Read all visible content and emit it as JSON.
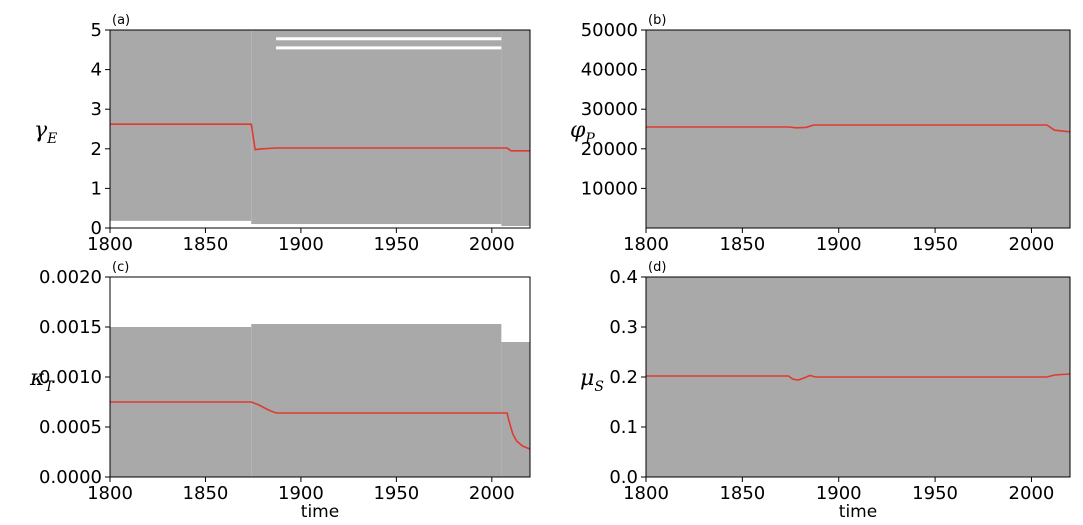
{
  "chart_data": [
    {
      "type": "line",
      "panel_label": "(a)",
      "ylabel_main": "γ",
      "ylabel_sub": "E",
      "xlabel": "",
      "xlim": [
        1800,
        2020
      ],
      "ylim": [
        0,
        5
      ],
      "xticks": [
        "1800",
        "1850",
        "1900",
        "1950",
        "2000"
      ],
      "yticks": [
        "0",
        "1",
        "2",
        "3",
        "4",
        "5"
      ],
      "band": {
        "color": "#a9a9a9",
        "segments": [
          {
            "x0": 1800,
            "x1": 1874,
            "lower": 0.18,
            "upper": 5.0
          },
          {
            "x0": 1874,
            "x1": 2005,
            "lower": 0.1,
            "upper": 5.0
          },
          {
            "x0": 2005,
            "x1": 2020,
            "lower": 0.05,
            "upper": 5.0
          }
        ],
        "gaps": [
          {
            "x0": 1887,
            "x1": 2005,
            "y": 4.78
          },
          {
            "x0": 1887,
            "x1": 2005,
            "y": 4.55
          }
        ]
      },
      "series": [
        {
          "color": "#e03a2f",
          "x": [
            1800,
            1874,
            1875,
            1876,
            1880,
            1887,
            2008,
            2010,
            2020
          ],
          "y": [
            2.62,
            2.62,
            2.3,
            1.98,
            2.0,
            2.02,
            2.02,
            1.95,
            1.95
          ]
        }
      ]
    },
    {
      "type": "line",
      "panel_label": "(b)",
      "ylabel_main": "φ",
      "ylabel_sub": "P",
      "xlabel": "",
      "xlim": [
        1800,
        2020
      ],
      "ylim": [
        0,
        50000
      ],
      "xticks": [
        "1800",
        "1850",
        "1900",
        "1950",
        "2000"
      ],
      "yticks": [
        "10000",
        "20000",
        "30000",
        "40000",
        "50000"
      ],
      "ytick_values": [
        10000,
        20000,
        30000,
        40000,
        50000
      ],
      "band": {
        "color": "#a9a9a9",
        "segments": [
          {
            "x0": 1800,
            "x1": 2020,
            "lower": 0,
            "upper": 50000
          }
        ],
        "gaps": []
      },
      "series": [
        {
          "color": "#e03a2f",
          "x": [
            1800,
            1874,
            1878,
            1883,
            1887,
            2008,
            2012,
            2020
          ],
          "y": [
            25500,
            25500,
            25300,
            25400,
            26000,
            26000,
            24700,
            24300
          ]
        }
      ]
    },
    {
      "type": "line",
      "panel_label": "(c)",
      "ylabel_main": "κ",
      "ylabel_sub": "T",
      "xlabel": "time",
      "xlim": [
        1800,
        2020
      ],
      "ylim": [
        0,
        0.002
      ],
      "xticks": [
        "1800",
        "1850",
        "1900",
        "1950",
        "2000"
      ],
      "yticks": [
        "0.0000",
        "0.0005",
        "0.0010",
        "0.0015",
        "0.0020"
      ],
      "ytick_values": [
        0,
        0.0005,
        0.001,
        0.0015,
        0.002
      ],
      "band": {
        "color": "#a9a9a9",
        "segments": [
          {
            "x0": 1800,
            "x1": 1874,
            "lower": 0,
            "upper": 0.0015
          },
          {
            "x0": 1874,
            "x1": 2005,
            "lower": 0,
            "upper": 0.00153
          },
          {
            "x0": 2005,
            "x1": 2020,
            "lower": 0,
            "upper": 0.00135
          }
        ],
        "gaps": []
      },
      "series": [
        {
          "color": "#e03a2f",
          "x": [
            1800,
            1874,
            1878,
            1883,
            1887,
            2008,
            2009,
            2011,
            2013,
            2016,
            2020
          ],
          "y": [
            0.00075,
            0.00075,
            0.00072,
            0.00067,
            0.00064,
            0.00064,
            0.00056,
            0.00043,
            0.00036,
            0.00031,
            0.00028
          ]
        }
      ]
    },
    {
      "type": "line",
      "panel_label": "(d)",
      "ylabel_main": "μ",
      "ylabel_sub": "S",
      "xlabel": "time",
      "xlim": [
        1800,
        2020
      ],
      "ylim": [
        0,
        0.4
      ],
      "xticks": [
        "1800",
        "1850",
        "1900",
        "1950",
        "2000"
      ],
      "yticks": [
        "0.0",
        "0.1",
        "0.2",
        "0.3",
        "0.4"
      ],
      "ytick_values": [
        0,
        0.1,
        0.2,
        0.3,
        0.4
      ],
      "band": {
        "color": "#a9a9a9",
        "segments": [
          {
            "x0": 1800,
            "x1": 2020,
            "lower": 0,
            "upper": 0.4
          }
        ],
        "gaps": []
      },
      "series": [
        {
          "color": "#e03a2f",
          "x": [
            1800,
            1874,
            1876,
            1879,
            1882,
            1885,
            1888,
            2008,
            2012,
            2020
          ],
          "y": [
            0.202,
            0.202,
            0.196,
            0.194,
            0.198,
            0.203,
            0.2,
            0.2,
            0.204,
            0.206
          ]
        }
      ]
    }
  ]
}
